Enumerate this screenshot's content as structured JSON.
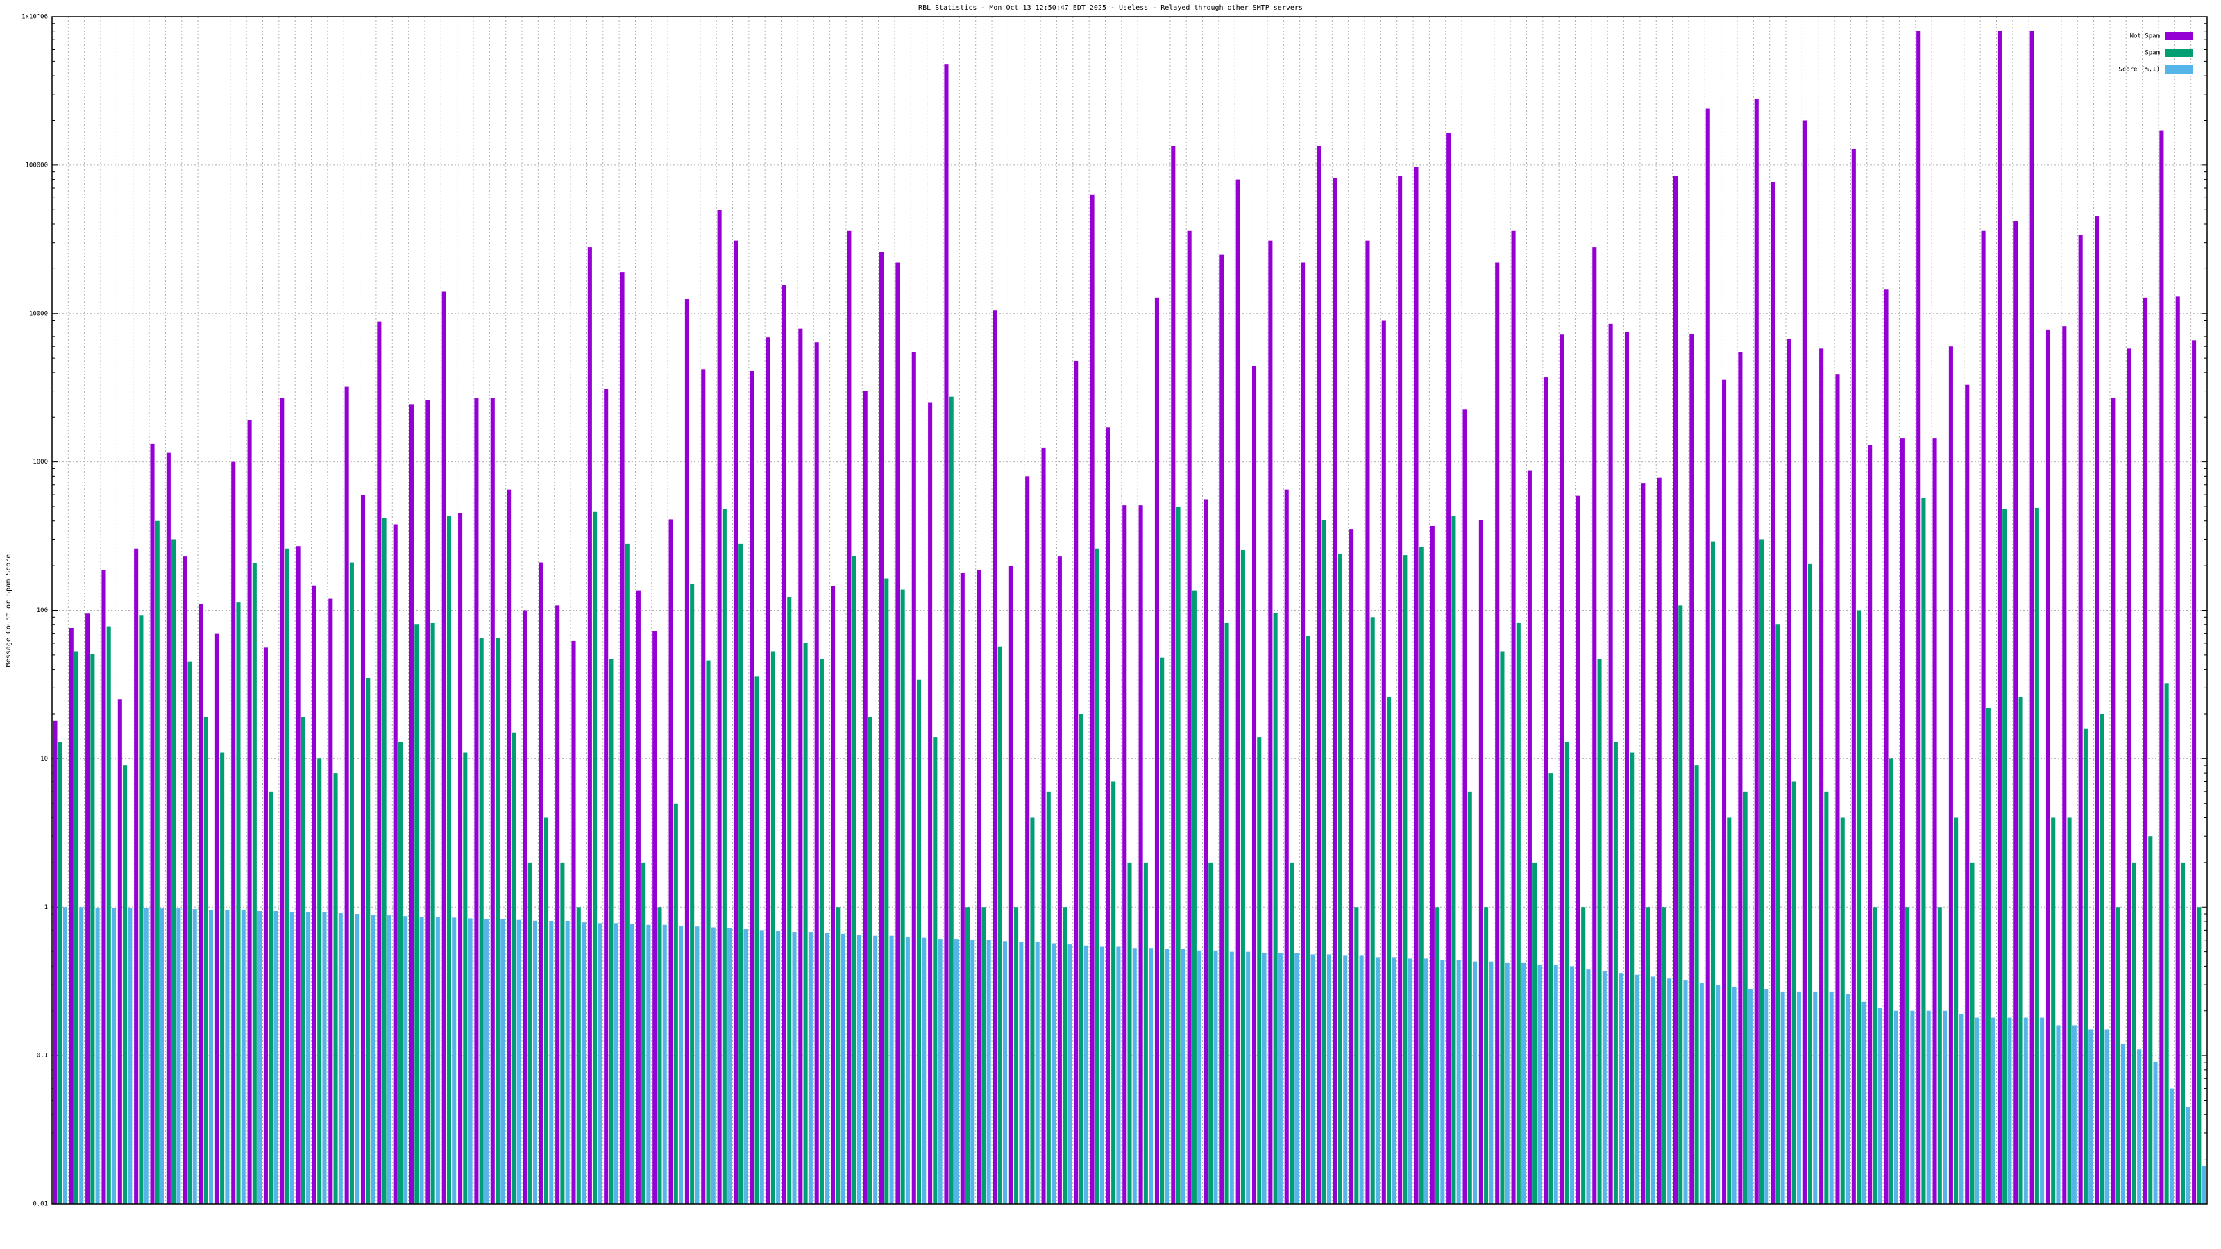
{
  "chart_data": {
    "type": "bar",
    "title": "RBL Statistics - Mon Oct 13 12:50:47 EDT 2025 - Useless - Relayed through other SMTP servers",
    "y_label": "Message Count or Spam Score",
    "log_scale": true,
    "grid": true,
    "legend_position": "top-right",
    "ylim": [
      0.01,
      1000000
    ],
    "yticks": [
      0.01,
      0.1,
      1,
      10,
      100,
      1000,
      10000,
      100000,
      {
        "value": 1000000,
        "label": "1x10^06"
      }
    ],
    "categories": [
      null,
      null,
      null,
      null,
      null,
      null,
      null,
      null,
      null,
      null,
      null,
      null,
      null,
      null,
      null,
      null,
      null,
      null,
      null,
      null,
      null,
      null,
      null,
      null,
      null,
      null,
      null,
      null,
      null,
      null,
      null,
      null,
      null,
      null,
      null,
      null,
      null,
      null,
      null,
      null,
      null,
      null,
      null,
      null,
      null,
      null,
      null,
      null,
      null,
      null,
      null,
      null,
      null,
      null,
      null,
      null,
      null,
      null,
      null,
      null,
      null,
      null,
      null,
      null,
      null,
      null,
      null,
      null,
      null,
      null,
      null,
      null,
      null,
      null,
      null,
      null,
      null,
      null,
      null,
      null,
      null,
      null,
      null,
      null,
      null,
      null,
      null,
      null,
      null,
      null,
      null,
      null,
      null,
      null,
      null,
      null,
      null,
      null,
      null,
      null,
      null,
      null,
      null,
      null,
      null,
      null,
      null,
      null,
      null,
      null,
      null,
      null,
      null,
      null,
      null,
      null,
      null,
      null,
      null,
      null,
      null,
      null,
      null,
      null,
      null,
      null,
      null,
      null,
      null,
      null,
      null,
      null,
      null
    ],
    "series": [
      {
        "name": "Not Spam",
        "color": "#9400d3",
        "values": [
          18,
          76,
          95,
          187,
          25,
          260,
          1320,
          1150,
          230,
          110,
          70,
          1000,
          1900,
          56,
          2700,
          270,
          147,
          120,
          3200,
          600,
          8800,
          380,
          2450,
          2600,
          14000,
          450,
          2700,
          2700,
          650,
          100,
          210,
          108,
          62,
          28000,
          3100,
          19000,
          135,
          72,
          410,
          12500,
          4200,
          50000,
          31000,
          4100,
          6900,
          15500,
          7900,
          6400,
          145,
          36000,
          3000,
          26000,
          22000,
          5500,
          2500,
          480000,
          178,
          187,
          10500,
          200,
          800,
          1250,
          230,
          4800,
          63000,
          1700,
          510,
          510,
          12800,
          135000,
          36000,
          560,
          25000,
          80000,
          4400,
          31000,
          650,
          22000,
          135000,
          82000,
          350,
          31000,
          9000,
          85000,
          97000,
          370,
          165000,
          2250,
          405,
          22000,
          36000,
          870,
          3700,
          7200,
          590,
          28000,
          8500,
          7500,
          720,
          780,
          85000,
          7300,
          240000,
          3600,
          5500,
          280000,
          77000,
          6700,
          200000,
          5800,
          3900,
          128000,
          1300,
          14500,
          1450,
          800000,
          1450,
          6000,
          3300,
          36000,
          800000,
          42000,
          800000,
          7800,
          8200,
          34000,
          45000,
          2700,
          5800,
          12800,
          170000,
          13000,
          6600
        ]
      },
      {
        "name": "Spam",
        "color": "#009e73",
        "values": [
          13,
          53,
          51,
          78,
          9,
          92,
          400,
          300,
          45,
          19,
          11,
          113,
          207,
          6,
          260,
          19,
          10,
          8,
          210,
          35,
          420,
          13,
          80,
          82,
          430,
          11,
          65,
          65,
          15,
          2,
          4,
          2,
          1,
          460,
          47,
          280,
          2,
          1,
          5,
          150,
          46,
          480,
          280,
          36,
          53,
          122,
          60,
          47,
          1,
          232,
          19,
          164,
          138,
          34,
          14,
          2750,
          1,
          1,
          57,
          1,
          4,
          6,
          1,
          20,
          260,
          7,
          2,
          2,
          48,
          500,
          135,
          2,
          82,
          255,
          14,
          96,
          2,
          67,
          405,
          240,
          1,
          90,
          26,
          235,
          265,
          1,
          430,
          6,
          1,
          53,
          82,
          2,
          8,
          13,
          1,
          47,
          13,
          11,
          1,
          1,
          108,
          9,
          290,
          4,
          6,
          300,
          80,
          7,
          205,
          6,
          4,
          100,
          1,
          10,
          1,
          570,
          1,
          4,
          2,
          22,
          480,
          26,
          490,
          4,
          4,
          16,
          20,
          1,
          2,
          3,
          32,
          2,
          1
        ]
      },
      {
        "name": "Score (%,I)",
        "color": "#56b4e9",
        "values": [
          1,
          1,
          0.99,
          0.99,
          0.99,
          0.99,
          0.98,
          0.98,
          0.97,
          0.96,
          0.96,
          0.95,
          0.94,
          0.94,
          0.93,
          0.92,
          0.92,
          0.91,
          0.9,
          0.89,
          0.88,
          0.87,
          0.86,
          0.86,
          0.85,
          0.84,
          0.83,
          0.83,
          0.82,
          0.81,
          0.8,
          0.8,
          0.79,
          0.78,
          0.78,
          0.77,
          0.76,
          0.76,
          0.75,
          0.74,
          0.73,
          0.72,
          0.71,
          0.7,
          0.69,
          0.68,
          0.68,
          0.67,
          0.66,
          0.65,
          0.64,
          0.64,
          0.63,
          0.62,
          0.61,
          0.61,
          0.6,
          0.6,
          0.59,
          0.58,
          0.58,
          0.57,
          0.56,
          0.55,
          0.54,
          0.54,
          0.53,
          0.53,
          0.52,
          0.52,
          0.51,
          0.51,
          0.5,
          0.5,
          0.49,
          0.49,
          0.49,
          0.48,
          0.48,
          0.47,
          0.47,
          0.46,
          0.46,
          0.45,
          0.45,
          0.44,
          0.44,
          0.43,
          0.43,
          0.42,
          0.42,
          0.41,
          0.41,
          0.4,
          0.38,
          0.37,
          0.36,
          0.35,
          0.34,
          0.33,
          0.32,
          0.31,
          0.3,
          0.29,
          0.28,
          0.28,
          0.27,
          0.27,
          0.27,
          0.27,
          0.26,
          0.23,
          0.21,
          0.2,
          0.2,
          0.2,
          0.2,
          0.19,
          0.18,
          0.18,
          0.18,
          0.18,
          0.18,
          0.16,
          0.16,
          0.15,
          0.15,
          0.12,
          0.11,
          0.09,
          0.06,
          0.045,
          0.018
        ]
      }
    ]
  }
}
